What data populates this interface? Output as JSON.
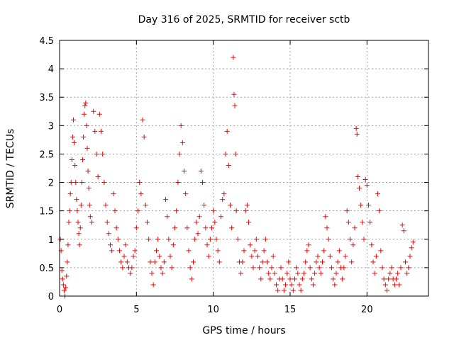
{
  "chart_data": {
    "type": "scatter",
    "title": "Day 316 of 2025, SRMTID for receiver sctb",
    "xlabel": "GPS time / hours",
    "ylabel": "SRMTID / TECUs",
    "xlim": [
      0,
      24
    ],
    "ylim": [
      0,
      4.5
    ],
    "xticks": [
      0,
      5,
      10,
      15,
      20
    ],
    "yticks": [
      0,
      0.5,
      1,
      1.5,
      2,
      2.5,
      3,
      3.5,
      4,
      4.5
    ],
    "ytick_labels": [
      "0",
      "0.5",
      "1",
      "1.5",
      "2",
      "2.5",
      "3",
      "3.5",
      "4",
      "4.5"
    ],
    "grid": true,
    "marker": "+",
    "series": [
      {
        "name": "SRMTID",
        "color": "#ff0000",
        "points": [
          [
            0.05,
            1.0
          ],
          [
            0.1,
            0.8
          ],
          [
            0.15,
            0.45
          ],
          [
            0.2,
            0.3
          ],
          [
            0.25,
            0.2
          ],
          [
            0.3,
            0.1
          ],
          [
            0.35,
            0.0
          ],
          [
            0.4,
            0.15
          ],
          [
            0.45,
            0.35
          ],
          [
            0.5,
            0.6
          ],
          [
            0.55,
            0.9
          ],
          [
            0.6,
            1.3
          ],
          [
            0.65,
            1.5
          ],
          [
            0.7,
            1.8
          ],
          [
            0.75,
            2.0
          ],
          [
            0.8,
            2.4
          ],
          [
            0.85,
            2.8
          ],
          [
            0.9,
            3.1
          ],
          [
            0.95,
            2.7
          ],
          [
            1.0,
            2.3
          ],
          [
            1.05,
            2.0
          ],
          [
            1.1,
            1.7
          ],
          [
            1.15,
            1.5
          ],
          [
            1.2,
            1.3
          ],
          [
            1.25,
            1.1
          ],
          [
            1.3,
            0.9
          ],
          [
            1.35,
            1.2
          ],
          [
            1.4,
            1.6
          ],
          [
            1.45,
            2.0
          ],
          [
            1.5,
            2.4
          ],
          [
            1.55,
            2.8
          ],
          [
            1.6,
            3.2
          ],
          [
            1.65,
            3.35
          ],
          [
            1.7,
            3.4
          ],
          [
            1.75,
            3.0
          ],
          [
            1.8,
            2.6
          ],
          [
            1.85,
            2.2
          ],
          [
            1.9,
            1.9
          ],
          [
            1.95,
            1.6
          ],
          [
            2.0,
            1.4
          ],
          [
            2.1,
            1.3
          ],
          [
            2.2,
            3.25
          ],
          [
            2.3,
            2.9
          ],
          [
            2.4,
            2.5
          ],
          [
            2.5,
            2.1
          ],
          [
            2.6,
            3.2
          ],
          [
            2.7,
            2.9
          ],
          [
            2.8,
            2.5
          ],
          [
            2.9,
            2.0
          ],
          [
            3.0,
            1.6
          ],
          [
            3.1,
            1.3
          ],
          [
            3.2,
            1.1
          ],
          [
            3.3,
            0.9
          ],
          [
            3.4,
            0.8
          ],
          [
            3.5,
            1.8
          ],
          [
            3.6,
            1.5
          ],
          [
            3.7,
            1.2
          ],
          [
            3.8,
            1.0
          ],
          [
            3.9,
            0.8
          ],
          [
            4.0,
            0.6
          ],
          [
            4.1,
            0.5
          ],
          [
            4.2,
            0.7
          ],
          [
            4.3,
            0.9
          ],
          [
            4.4,
            0.6
          ],
          [
            4.5,
            0.5
          ],
          [
            4.6,
            0.4
          ],
          [
            4.7,
            0.5
          ],
          [
            4.8,
            0.7
          ],
          [
            4.9,
            0.8
          ],
          [
            5.0,
            1.2
          ],
          [
            5.1,
            1.5
          ],
          [
            5.2,
            2.0
          ],
          [
            5.3,
            1.8
          ],
          [
            5.4,
            3.1
          ],
          [
            5.5,
            2.8
          ],
          [
            5.6,
            1.6
          ],
          [
            5.7,
            1.3
          ],
          [
            5.8,
            1.0
          ],
          [
            5.9,
            0.6
          ],
          [
            6.0,
            0.4
          ],
          [
            6.1,
            0.2
          ],
          [
            6.2,
            0.6
          ],
          [
            6.3,
            0.8
          ],
          [
            6.4,
            1.0
          ],
          [
            6.5,
            0.7
          ],
          [
            6.6,
            0.5
          ],
          [
            6.7,
            0.4
          ],
          [
            6.8,
            0.6
          ],
          [
            6.9,
            1.7
          ],
          [
            7.0,
            1.4
          ],
          [
            7.1,
            1.0
          ],
          [
            7.2,
            0.7
          ],
          [
            7.3,
            0.5
          ],
          [
            7.4,
            0.9
          ],
          [
            7.5,
            1.2
          ],
          [
            7.6,
            1.5
          ],
          [
            7.7,
            2.0
          ],
          [
            7.8,
            2.5
          ],
          [
            7.9,
            3.0
          ],
          [
            8.0,
            2.7
          ],
          [
            8.1,
            2.2
          ],
          [
            8.2,
            1.8
          ],
          [
            8.3,
            1.2
          ],
          [
            8.4,
            0.8
          ],
          [
            8.5,
            0.5
          ],
          [
            8.6,
            0.3
          ],
          [
            8.7,
            0.6
          ],
          [
            8.8,
            1.0
          ],
          [
            8.9,
            1.3
          ],
          [
            9.0,
            1.1
          ],
          [
            9.1,
            1.4
          ],
          [
            9.2,
            2.2
          ],
          [
            9.3,
            2.0
          ],
          [
            9.4,
            1.6
          ],
          [
            9.5,
            1.2
          ],
          [
            9.6,
            0.9
          ],
          [
            9.7,
            0.7
          ],
          [
            9.8,
            1.0
          ],
          [
            9.9,
            1.2
          ],
          [
            10.0,
            1.5
          ],
          [
            10.1,
            1.3
          ],
          [
            10.2,
            1.0
          ],
          [
            10.3,
            0.8
          ],
          [
            10.4,
            0.6
          ],
          [
            10.5,
            1.4
          ],
          [
            10.6,
            1.7
          ],
          [
            10.7,
            1.8
          ],
          [
            10.8,
            2.5
          ],
          [
            10.9,
            2.9
          ],
          [
            11.0,
            2.3
          ],
          [
            11.1,
            1.6
          ],
          [
            11.2,
            1.2
          ],
          [
            11.3,
            4.2
          ],
          [
            11.35,
            3.55
          ],
          [
            11.4,
            3.35
          ],
          [
            11.45,
            2.5
          ],
          [
            11.5,
            1.5
          ],
          [
            11.6,
            1.0
          ],
          [
            11.7,
            0.6
          ],
          [
            11.8,
            0.4
          ],
          [
            11.9,
            0.6
          ],
          [
            12.0,
            0.8
          ],
          [
            12.1,
            1.5
          ],
          [
            12.2,
            1.6
          ],
          [
            12.3,
            1.3
          ],
          [
            12.4,
            0.9
          ],
          [
            12.5,
            0.7
          ],
          [
            12.6,
            0.5
          ],
          [
            12.7,
            0.8
          ],
          [
            12.8,
            1.0
          ],
          [
            12.9,
            0.7
          ],
          [
            13.0,
            0.5
          ],
          [
            13.1,
            0.3
          ],
          [
            13.2,
            0.6
          ],
          [
            13.3,
            0.8
          ],
          [
            13.4,
            1.0
          ],
          [
            13.5,
            0.6
          ],
          [
            13.6,
            0.4
          ],
          [
            13.7,
            0.3
          ],
          [
            13.8,
            0.5
          ],
          [
            13.9,
            0.7
          ],
          [
            14.0,
            0.4
          ],
          [
            14.1,
            0.2
          ],
          [
            14.2,
            0.1
          ],
          [
            14.3,
            0.3
          ],
          [
            14.4,
            0.5
          ],
          [
            14.5,
            0.3
          ],
          [
            14.6,
            0.1
          ],
          [
            14.7,
            0.2
          ],
          [
            14.8,
            0.4
          ],
          [
            14.9,
            0.6
          ],
          [
            15.0,
            0.3
          ],
          [
            15.1,
            0.2
          ],
          [
            15.2,
            0.1
          ],
          [
            15.3,
            0.3
          ],
          [
            15.4,
            0.5
          ],
          [
            15.5,
            0.4
          ],
          [
            15.6,
            0.2
          ],
          [
            15.7,
            0.1
          ],
          [
            15.8,
            0.3
          ],
          [
            15.9,
            0.4
          ],
          [
            16.0,
            0.6
          ],
          [
            16.1,
            0.8
          ],
          [
            16.2,
            0.9
          ],
          [
            16.3,
            0.5
          ],
          [
            16.4,
            0.3
          ],
          [
            16.5,
            0.2
          ],
          [
            16.6,
            0.4
          ],
          [
            16.7,
            0.6
          ],
          [
            16.8,
            0.7
          ],
          [
            16.9,
            0.5
          ],
          [
            17.0,
            0.4
          ],
          [
            17.1,
            0.6
          ],
          [
            17.2,
            0.8
          ],
          [
            17.3,
            1.4
          ],
          [
            17.4,
            1.2
          ],
          [
            17.5,
            1.0
          ],
          [
            17.6,
            0.7
          ],
          [
            17.7,
            0.5
          ],
          [
            17.8,
            0.3
          ],
          [
            17.9,
            0.2
          ],
          [
            18.0,
            0.4
          ],
          [
            18.1,
            0.6
          ],
          [
            18.2,
            0.8
          ],
          [
            18.3,
            0.5
          ],
          [
            18.4,
            0.3
          ],
          [
            18.5,
            0.5
          ],
          [
            18.6,
            0.7
          ],
          [
            18.7,
            1.5
          ],
          [
            18.8,
            1.3
          ],
          [
            18.9,
            1.0
          ],
          [
            19.0,
            0.6
          ],
          [
            19.1,
            0.9
          ],
          [
            19.2,
            1.2
          ],
          [
            19.3,
            2.95
          ],
          [
            19.35,
            2.85
          ],
          [
            19.4,
            2.1
          ],
          [
            19.5,
            1.9
          ],
          [
            19.6,
            1.6
          ],
          [
            19.7,
            1.3
          ],
          [
            19.8,
            1.0
          ],
          [
            19.9,
            2.05
          ],
          [
            20.0,
            1.95
          ],
          [
            20.1,
            1.6
          ],
          [
            20.2,
            1.3
          ],
          [
            20.3,
            0.9
          ],
          [
            20.4,
            0.6
          ],
          [
            20.5,
            0.4
          ],
          [
            20.6,
            0.7
          ],
          [
            20.7,
            1.8
          ],
          [
            20.8,
            1.5
          ],
          [
            20.9,
            0.8
          ],
          [
            21.0,
            0.5
          ],
          [
            21.1,
            0.3
          ],
          [
            21.2,
            0.2
          ],
          [
            21.3,
            0.1
          ],
          [
            21.4,
            0.3
          ],
          [
            21.5,
            0.4
          ],
          [
            21.6,
            0.5
          ],
          [
            21.7,
            0.3
          ],
          [
            21.8,
            0.2
          ],
          [
            21.9,
            0.3
          ],
          [
            22.0,
            0.4
          ],
          [
            22.1,
            0.2
          ],
          [
            22.2,
            0.5
          ],
          [
            22.3,
            1.25
          ],
          [
            22.4,
            1.15
          ],
          [
            22.5,
            0.6
          ],
          [
            22.6,
            0.4
          ],
          [
            22.7,
            0.5
          ],
          [
            22.8,
            0.7
          ],
          [
            22.9,
            0.85
          ],
          [
            23.0,
            0.95
          ]
        ]
      }
    ]
  }
}
